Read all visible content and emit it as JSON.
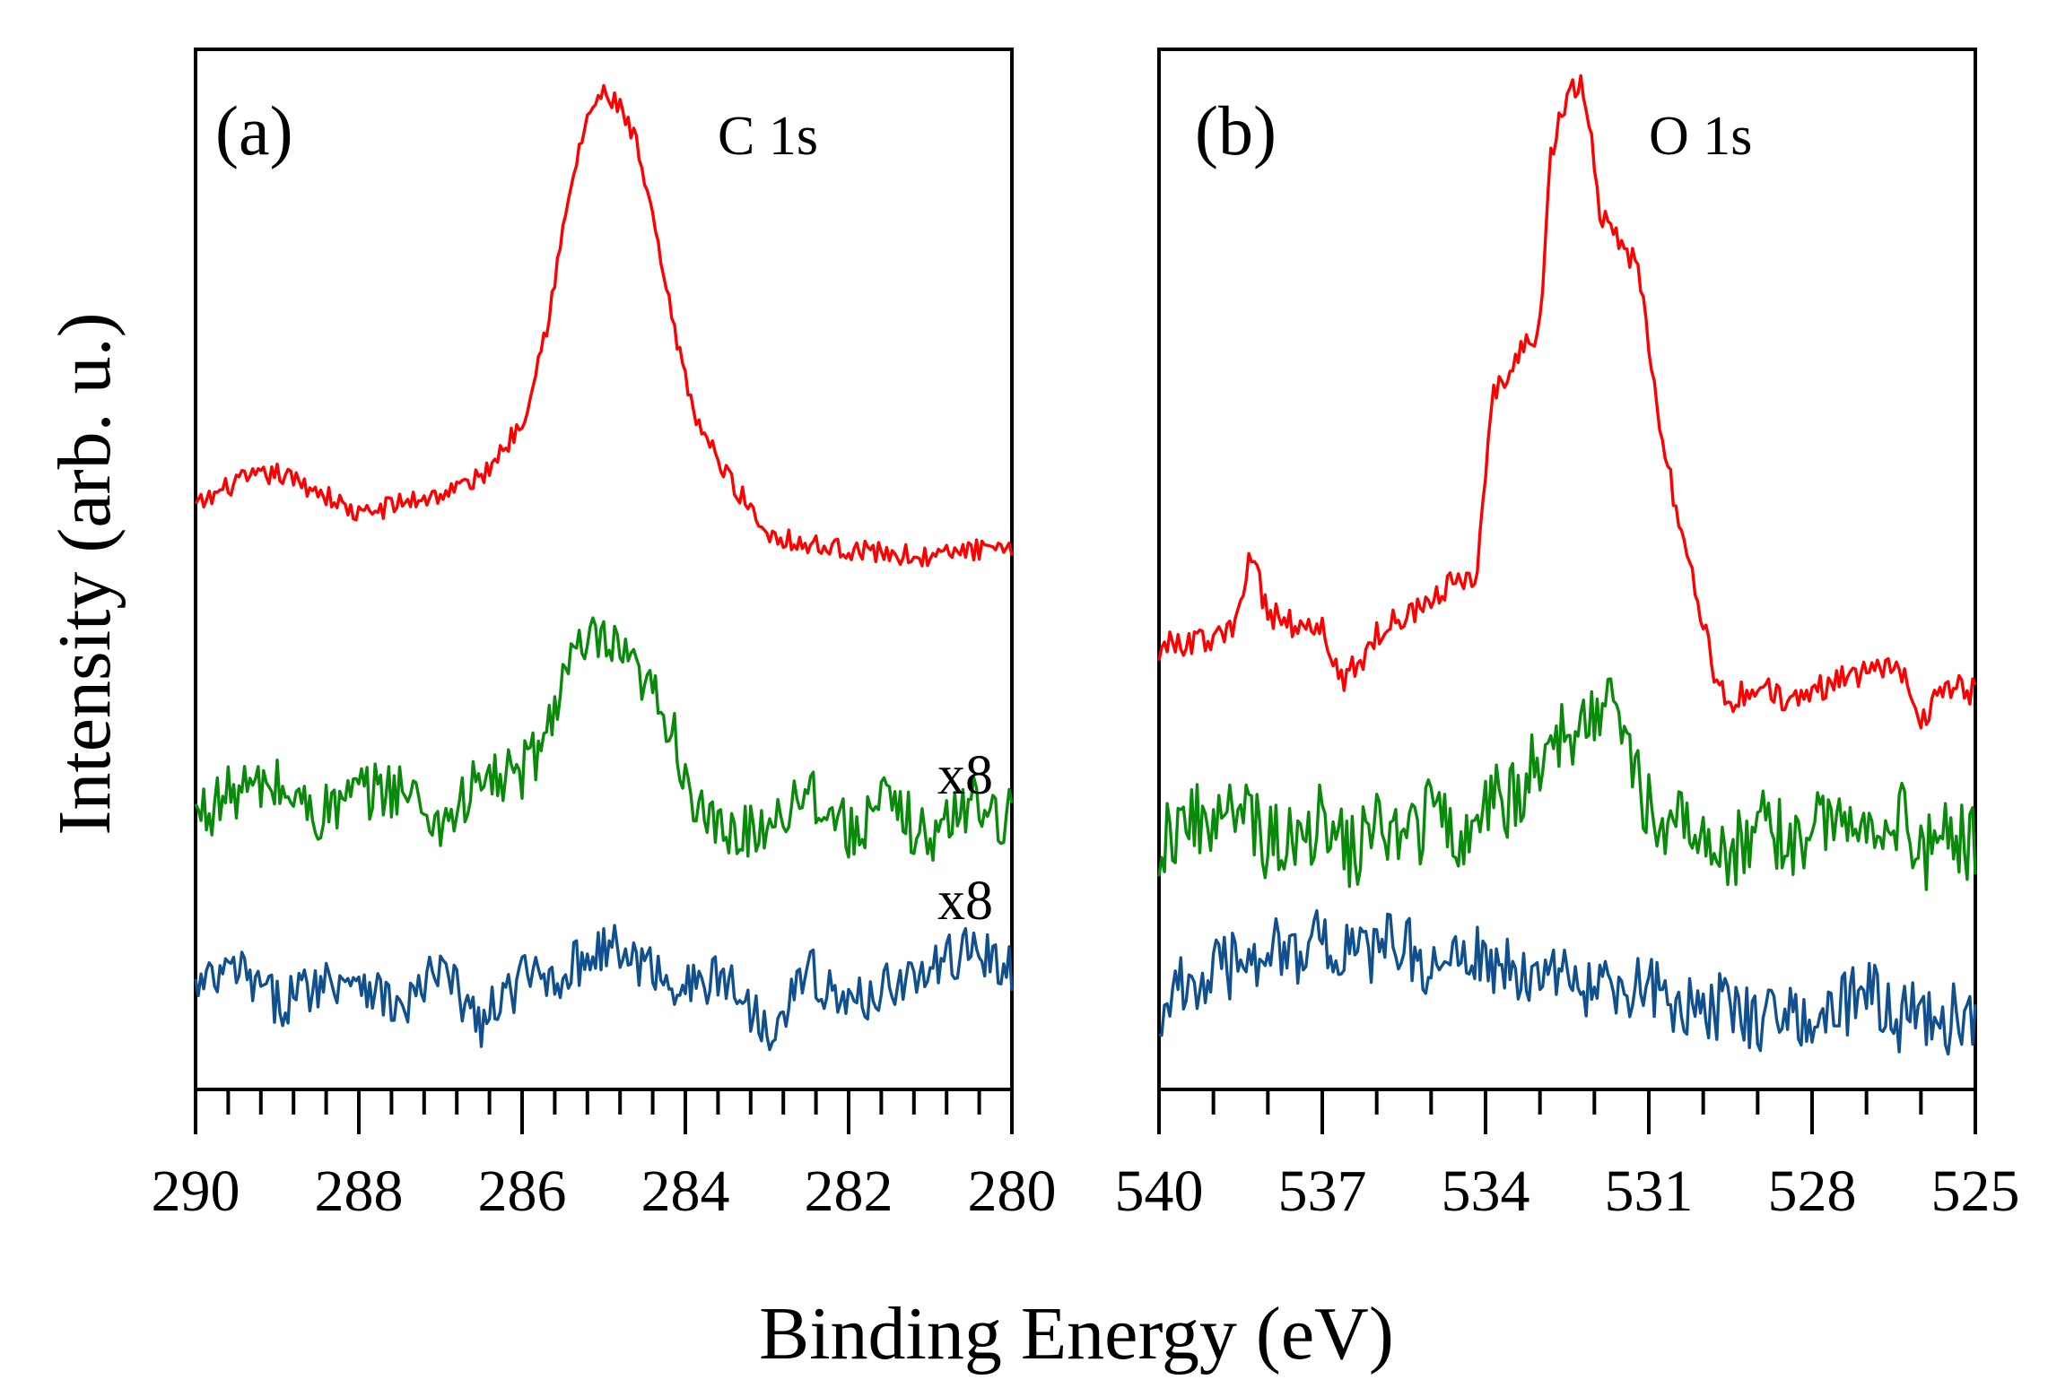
{
  "chart_data": [
    {
      "type": "line",
      "panel_label": "(a)",
      "annotation": "C 1s",
      "xlabel": "Binding Energy (eV)",
      "ylabel": "Intensity (arb. u.)",
      "xlim": [
        290,
        280
      ],
      "x_ticks": [
        "290",
        "288",
        "286",
        "284",
        "282",
        "280"
      ],
      "y_tick_labels": false,
      "series": [
        {
          "color": "#ff0000",
          "x": [
            290,
            289.5,
            289,
            288.5,
            288,
            287.5,
            287,
            286.5,
            286,
            285.7,
            285.4,
            285.2,
            285,
            284.8,
            284.6,
            284.4,
            284.2,
            284,
            283.8,
            283.5,
            283,
            282.5,
            282,
            281.5,
            281,
            280.5,
            280
          ],
          "values": [
            0.02,
            0.08,
            0.1,
            0.06,
            0.0,
            0.03,
            0.05,
            0.09,
            0.22,
            0.45,
            0.78,
            0.95,
            1.0,
            0.97,
            0.88,
            0.7,
            0.5,
            0.32,
            0.2,
            0.1,
            -0.04,
            -0.07,
            -0.08,
            -0.09,
            -0.1,
            -0.08,
            -0.09
          ]
        },
        {
          "color": "#0a8a0a",
          "multiplier_label": "x8",
          "x": [
            290,
            289.5,
            289,
            288.5,
            288,
            287.5,
            287,
            286.5,
            286,
            285.7,
            285.5,
            285.2,
            285,
            284.8,
            284.5,
            284.2,
            284,
            283.8,
            283.5,
            283,
            282.5,
            282,
            281.5,
            281,
            280.5,
            280
          ],
          "values": [
            -0.01,
            0.05,
            0.06,
            -0.01,
            0.04,
            0.06,
            -0.03,
            0.07,
            0.09,
            0.18,
            0.33,
            0.39,
            0.4,
            0.36,
            0.3,
            0.22,
            0.09,
            -0.02,
            -0.06,
            -0.03,
            0.06,
            -0.05,
            0.02,
            -0.07,
            0.03,
            -0.02
          ]
        },
        {
          "color": "#11508f",
          "multiplier_label": "x8",
          "x": [
            290,
            289.5,
            289,
            288.5,
            288,
            287.5,
            287,
            286.5,
            286,
            285.5,
            285,
            284.5,
            284,
            283.5,
            283,
            282.5,
            282,
            281.5,
            281,
            280.5,
            280
          ],
          "values": [
            0.0,
            0.05,
            -0.03,
            0.02,
            0.04,
            -0.05,
            0.05,
            -0.08,
            0.03,
            0.04,
            0.11,
            0.06,
            0.01,
            0.03,
            -0.09,
            0.05,
            -0.04,
            0.02,
            0.04,
            0.11,
            0.04
          ]
        }
      ]
    },
    {
      "type": "line",
      "panel_label": "(b)",
      "annotation": "O 1s",
      "xlabel": "Binding Energy (eV)",
      "ylabel": "Intensity (arb. u.)",
      "xlim": [
        540,
        525
      ],
      "x_ticks": [
        "540",
        "537",
        "534",
        "531",
        "528",
        "525"
      ],
      "y_tick_labels": false,
      "series": [
        {
          "color": "#ff0000",
          "x": [
            540,
            539.5,
            539,
            538.6,
            538.3,
            538,
            537.5,
            537,
            536.6,
            536,
            535.5,
            535,
            534.5,
            534.2,
            533.9,
            533.5,
            533,
            532.8,
            532.5,
            532.2,
            531.9,
            531.5,
            531.2,
            531,
            530.7,
            530.4,
            530.1,
            529.8,
            529.5,
            529,
            528.5,
            528,
            527.5,
            527,
            526.5,
            526,
            525.5,
            525
          ],
          "values": [
            0.02,
            0.03,
            0.03,
            0.06,
            0.18,
            0.08,
            0.06,
            0.05,
            -0.04,
            0.04,
            0.08,
            0.1,
            0.14,
            0.12,
            0.45,
            0.52,
            0.58,
            0.88,
            0.98,
            1.0,
            0.78,
            0.72,
            0.68,
            0.55,
            0.35,
            0.22,
            0.1,
            -0.02,
            -0.08,
            -0.04,
            -0.08,
            -0.06,
            -0.03,
            -0.02,
            0.0,
            -0.1,
            -0.05,
            -0.06
          ]
        },
        {
          "color": "#0a8a0a",
          "x": [
            540,
            539.5,
            539,
            538.5,
            538,
            537.5,
            537,
            536.5,
            536,
            535.5,
            535,
            534.5,
            534,
            533.5,
            533,
            532.5,
            532,
            531.7,
            531.5,
            531.2,
            531,
            530.5,
            530,
            529.5,
            529,
            528.5,
            528,
            527.5,
            527,
            526.5,
            526,
            525.5,
            525
          ],
          "values": [
            0.0,
            0.05,
            0.02,
            0.06,
            0.0,
            0.02,
            0.04,
            -0.02,
            0.03,
            0.0,
            0.05,
            0.02,
            0.06,
            0.08,
            0.14,
            0.18,
            0.24,
            0.26,
            0.22,
            0.12,
            0.06,
            0.02,
            0.04,
            -0.02,
            0.03,
            0.0,
            0.02,
            0.05,
            0.03,
            0.06,
            -0.02,
            0.01,
            -0.01
          ]
        },
        {
          "color": "#11508f",
          "x": [
            540,
            539.5,
            539,
            538.5,
            538,
            537.5,
            537,
            536.5,
            536,
            535.5,
            535,
            534.5,
            534,
            533.5,
            533,
            532.5,
            532,
            531.5,
            531,
            530.5,
            530,
            529.5,
            529,
            528.5,
            528,
            527.5,
            527,
            526.5,
            526,
            525.5,
            525
          ],
          "values": [
            0.0,
            0.04,
            0.06,
            0.08,
            0.11,
            0.1,
            0.12,
            0.09,
            0.1,
            0.12,
            0.07,
            0.08,
            0.09,
            0.06,
            0.04,
            0.07,
            0.02,
            0.03,
            0.04,
            0.01,
            0.0,
            0.01,
            -0.02,
            0.02,
            -0.03,
            0.0,
            0.04,
            -0.02,
            0.0,
            -0.02,
            0.0
          ]
        }
      ]
    }
  ]
}
